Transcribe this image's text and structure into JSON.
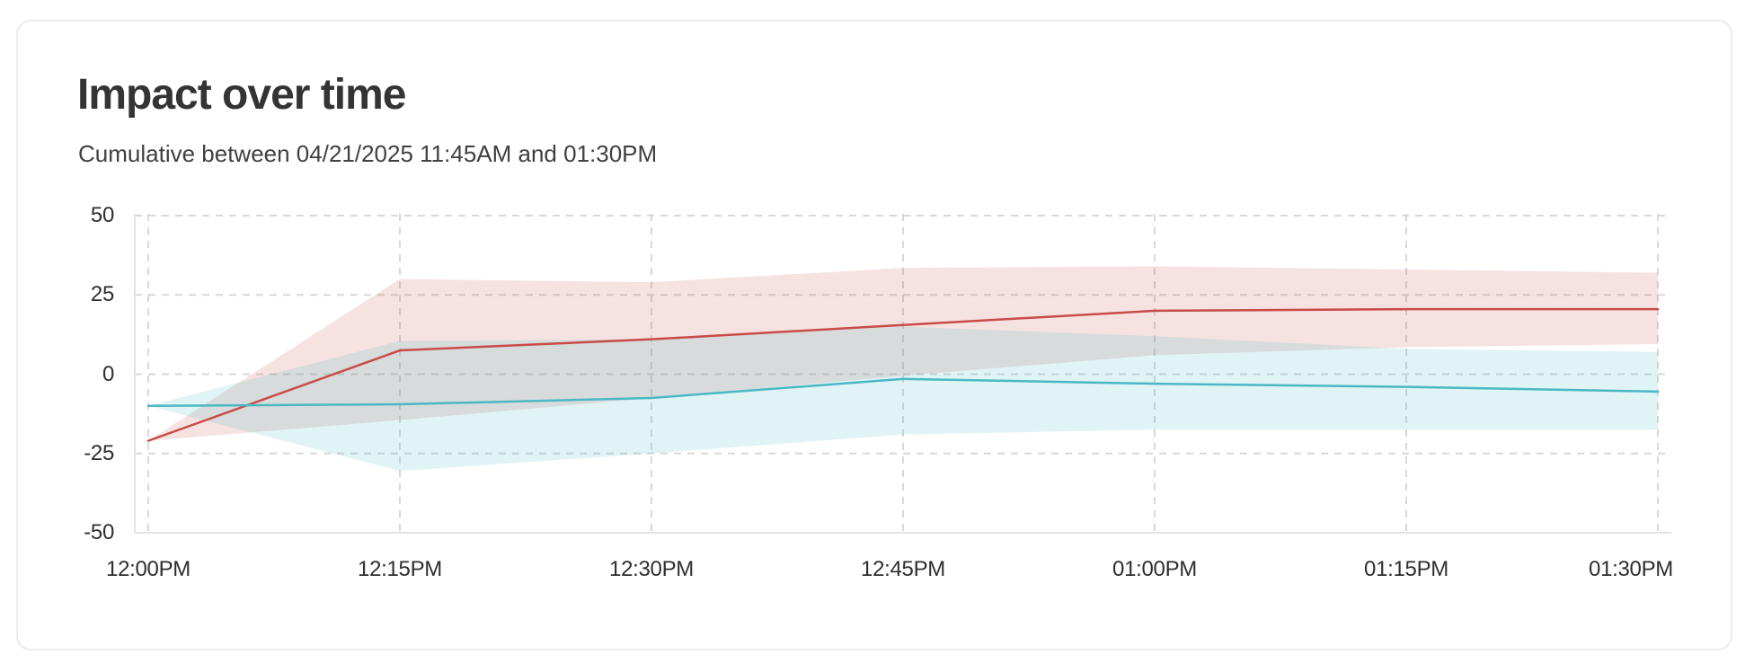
{
  "chart_data": {
    "type": "area",
    "title": "Impact over time",
    "subtitle": "Cumulative between 04/21/2025 11:45AM and 01:30PM",
    "x": [
      "12:00PM",
      "12:15PM",
      "12:30PM",
      "12:45PM",
      "01:00PM",
      "01:15PM",
      "01:30PM"
    ],
    "xlabel": "",
    "ylabel": "",
    "y_ticks": [
      50,
      25,
      0,
      -25,
      -50
    ],
    "ylim": [
      -50,
      50
    ],
    "grid": "dashed",
    "legend": "none",
    "series": [
      {
        "name": "red-series",
        "color": "#c84b48",
        "band_color": "rgba(201,73,70,0.16)",
        "values": [
          -21,
          7.5,
          11,
          15.5,
          20,
          20.5,
          20.5
        ],
        "band_upper": [
          -21,
          30,
          29,
          33.5,
          34,
          33,
          32
        ],
        "band_lower": [
          -21,
          -14.5,
          -7.5,
          -0.5,
          6,
          8.5,
          9.5
        ]
      },
      {
        "name": "teal-series",
        "color": "#4ab8c4",
        "band_color": "rgba(73,182,194,0.17)",
        "values": [
          -10,
          -9.5,
          -7.5,
          -1.5,
          -3,
          -4,
          -5.5
        ],
        "band_upper": [
          -10,
          10.5,
          11,
          15,
          12,
          8,
          7
        ],
        "band_lower": [
          -10,
          -30.5,
          -25,
          -19,
          -17.5,
          -17.5,
          -17.5
        ]
      }
    ]
  }
}
